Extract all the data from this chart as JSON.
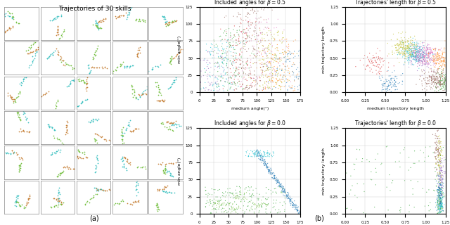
{
  "title_a": "Trajectories of 30 skills",
  "title_b1": "Included angles for $\\beta = 0.5$",
  "title_b2": "Trajectories' length for $\\beta = 0.5$",
  "title_b3": "Included angles for $\\beta = 0.0$",
  "title_b4": "Trajectories' length for $\\beta = 0.0$",
  "xlabel_angle": "medium angle(°)",
  "ylabel_angle": "min angle(°)",
  "xlabel_length": "medium trajectory length",
  "ylabel_length": "min trajectory length",
  "n_skills": 30,
  "grid_rows": 6,
  "grid_cols": 5,
  "traj_colors": [
    "#3ec1c1",
    "#77c043",
    "#c8843e"
  ],
  "scatter_colors": [
    "#9467bd",
    "#17becf",
    "#2ca02c",
    "#d62728",
    "#8c564b",
    "#e377c2",
    "#bcbd22",
    "#ff7f0e",
    "#1f77b4"
  ],
  "bg_color": "#ffffff"
}
